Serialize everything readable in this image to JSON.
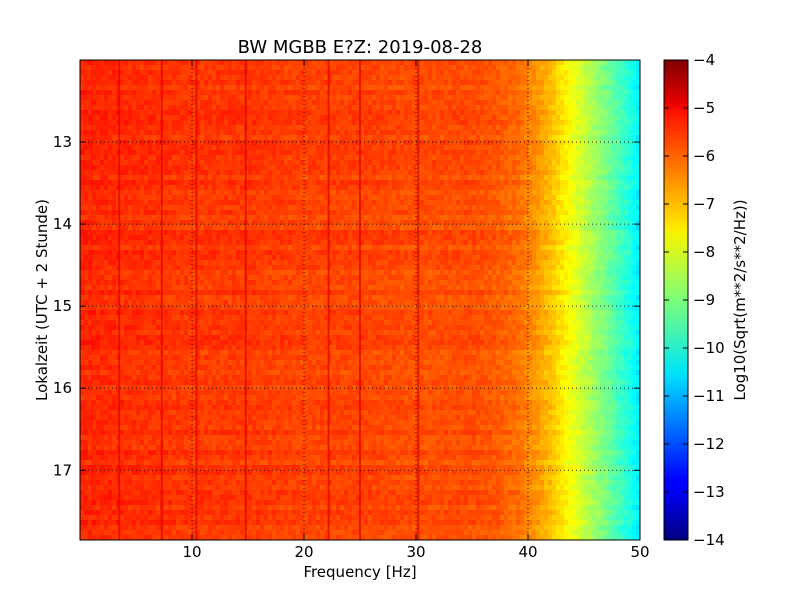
{
  "chart_data": {
    "type": "heatmap",
    "title": "BW MGBB E?Z: 2019-08-28",
    "xlabel": "Frequency [Hz]",
    "ylabel": "Lokalzeit (UTC + 2 Stunde)",
    "colorbar_label": "Log10(Sqrt(m**2/s**2/Hz))",
    "colormap": "jet",
    "xlim": [
      0,
      50
    ],
    "ylim": [
      12.0,
      17.85
    ],
    "y_inverted": true,
    "grid": true,
    "x_ticks": [
      10,
      20,
      30,
      40,
      50
    ],
    "x_tick_labels": [
      "10",
      "20",
      "30",
      "40",
      "50"
    ],
    "y_ticks": [
      13,
      14,
      15,
      16,
      17
    ],
    "y_tick_labels": [
      "13",
      "14",
      "15",
      "16",
      "17"
    ],
    "clim": [
      -14,
      -4
    ],
    "colorbar_ticks": [
      -4,
      -5,
      -6,
      -7,
      -8,
      -9,
      -10,
      -11,
      -12,
      -13,
      -14
    ],
    "colorbar_tick_labels": [
      "−4",
      "−5",
      "−6",
      "−7",
      "−8",
      "−9",
      "−10",
      "−11",
      "−12",
      "−13",
      "−14"
    ],
    "spectrum_profile": {
      "frequency_hz": [
        0,
        5,
        10,
        15,
        20,
        25,
        30,
        35,
        37,
        39,
        40,
        41,
        42,
        43,
        44,
        45,
        46,
        47,
        48,
        49,
        50
      ],
      "level": [
        -5.6,
        -5.7,
        -5.8,
        -5.8,
        -5.9,
        -5.9,
        -6.0,
        -6.0,
        -6.1,
        -6.3,
        -6.5,
        -6.8,
        -7.1,
        -7.5,
        -7.9,
        -8.3,
        -8.7,
        -9.1,
        -9.5,
        -9.9,
        -10.4
      ]
    },
    "narrowband_lines_hz": [
      3.5,
      7.3,
      10.4,
      14.8,
      22.2,
      25.0,
      30.2
    ],
    "line_level": -5.0
  }
}
